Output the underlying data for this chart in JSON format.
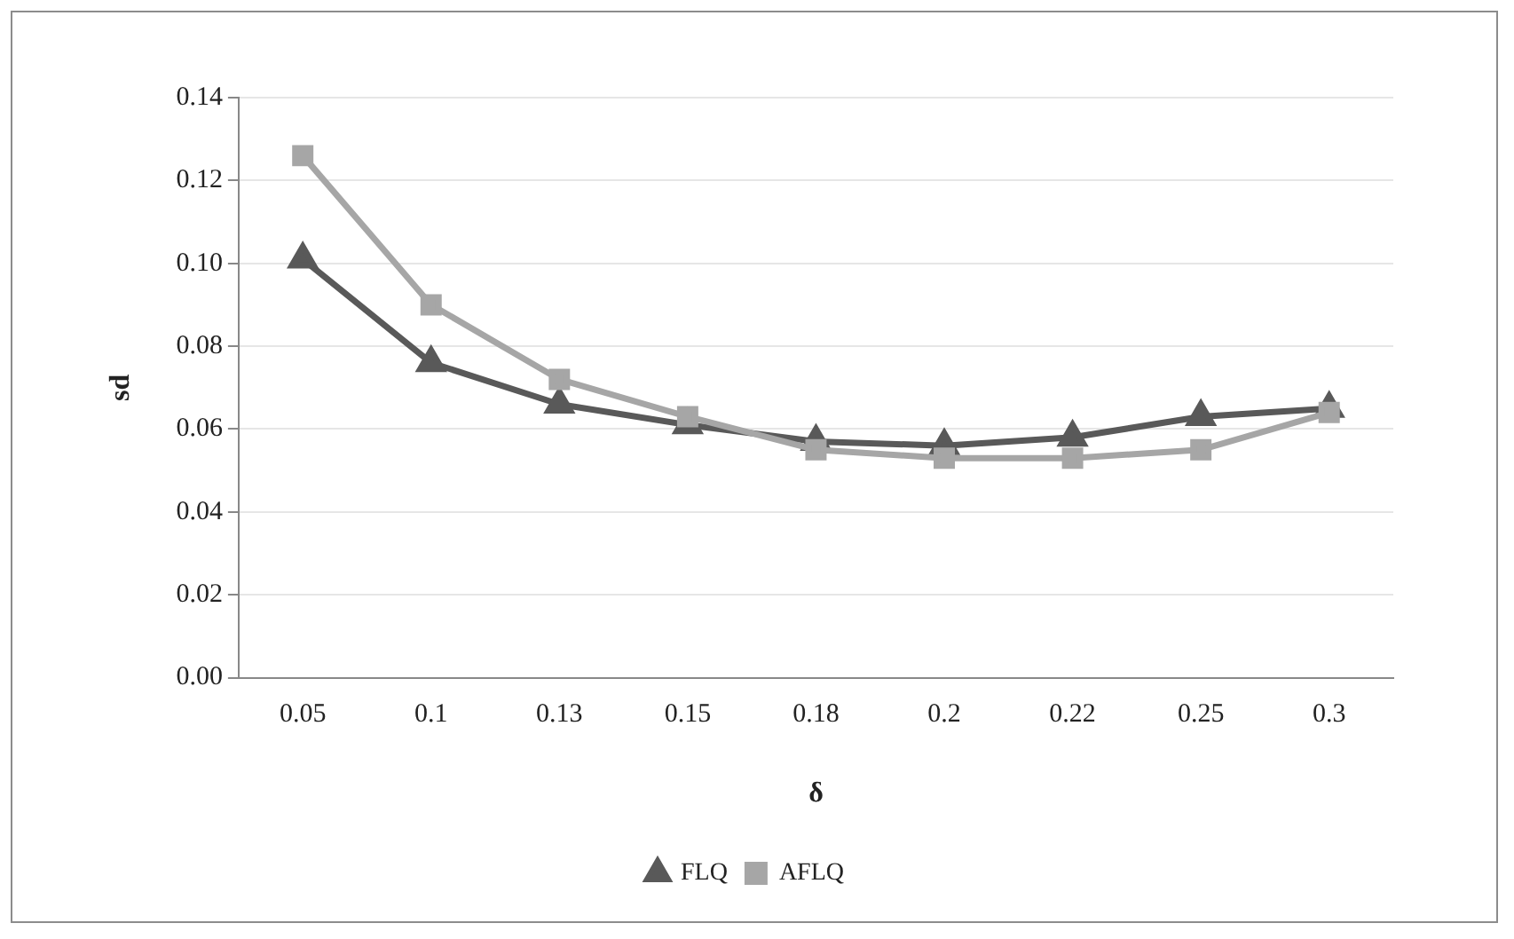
{
  "chart_data": {
    "type": "line",
    "xlabel": "δ",
    "ylabel": "sd",
    "categories": [
      "0.05",
      "0.1",
      "0.13",
      "0.15",
      "0.18",
      "0.2",
      "0.22",
      "0.25",
      "0.3"
    ],
    "series": [
      {
        "name": "FLQ",
        "color": "#595959",
        "marker": "triangle",
        "values": [
          0.101,
          0.076,
          0.066,
          0.061,
          0.057,
          0.056,
          0.058,
          0.063,
          0.065
        ]
      },
      {
        "name": "AFLQ",
        "color": "#a6a6a6",
        "marker": "square",
        "values": [
          0.126,
          0.09,
          0.072,
          0.063,
          0.055,
          0.053,
          0.053,
          0.055,
          0.064
        ]
      }
    ],
    "ylim": [
      0,
      0.14
    ],
    "yticks": [
      {
        "value": 0,
        "label": "0.00"
      },
      {
        "value": 0.02,
        "label": "0.02"
      },
      {
        "value": 0.04,
        "label": "0.04"
      },
      {
        "value": 0.06,
        "label": "0.06"
      },
      {
        "value": 0.08,
        "label": "0.08"
      },
      {
        "value": 0.1,
        "label": "0.10"
      },
      {
        "value": 0.12,
        "label": "0.12"
      },
      {
        "value": 0.14,
        "label": "0.14"
      }
    ],
    "grid": "y",
    "legend": "bottom",
    "line_style": "solid"
  }
}
